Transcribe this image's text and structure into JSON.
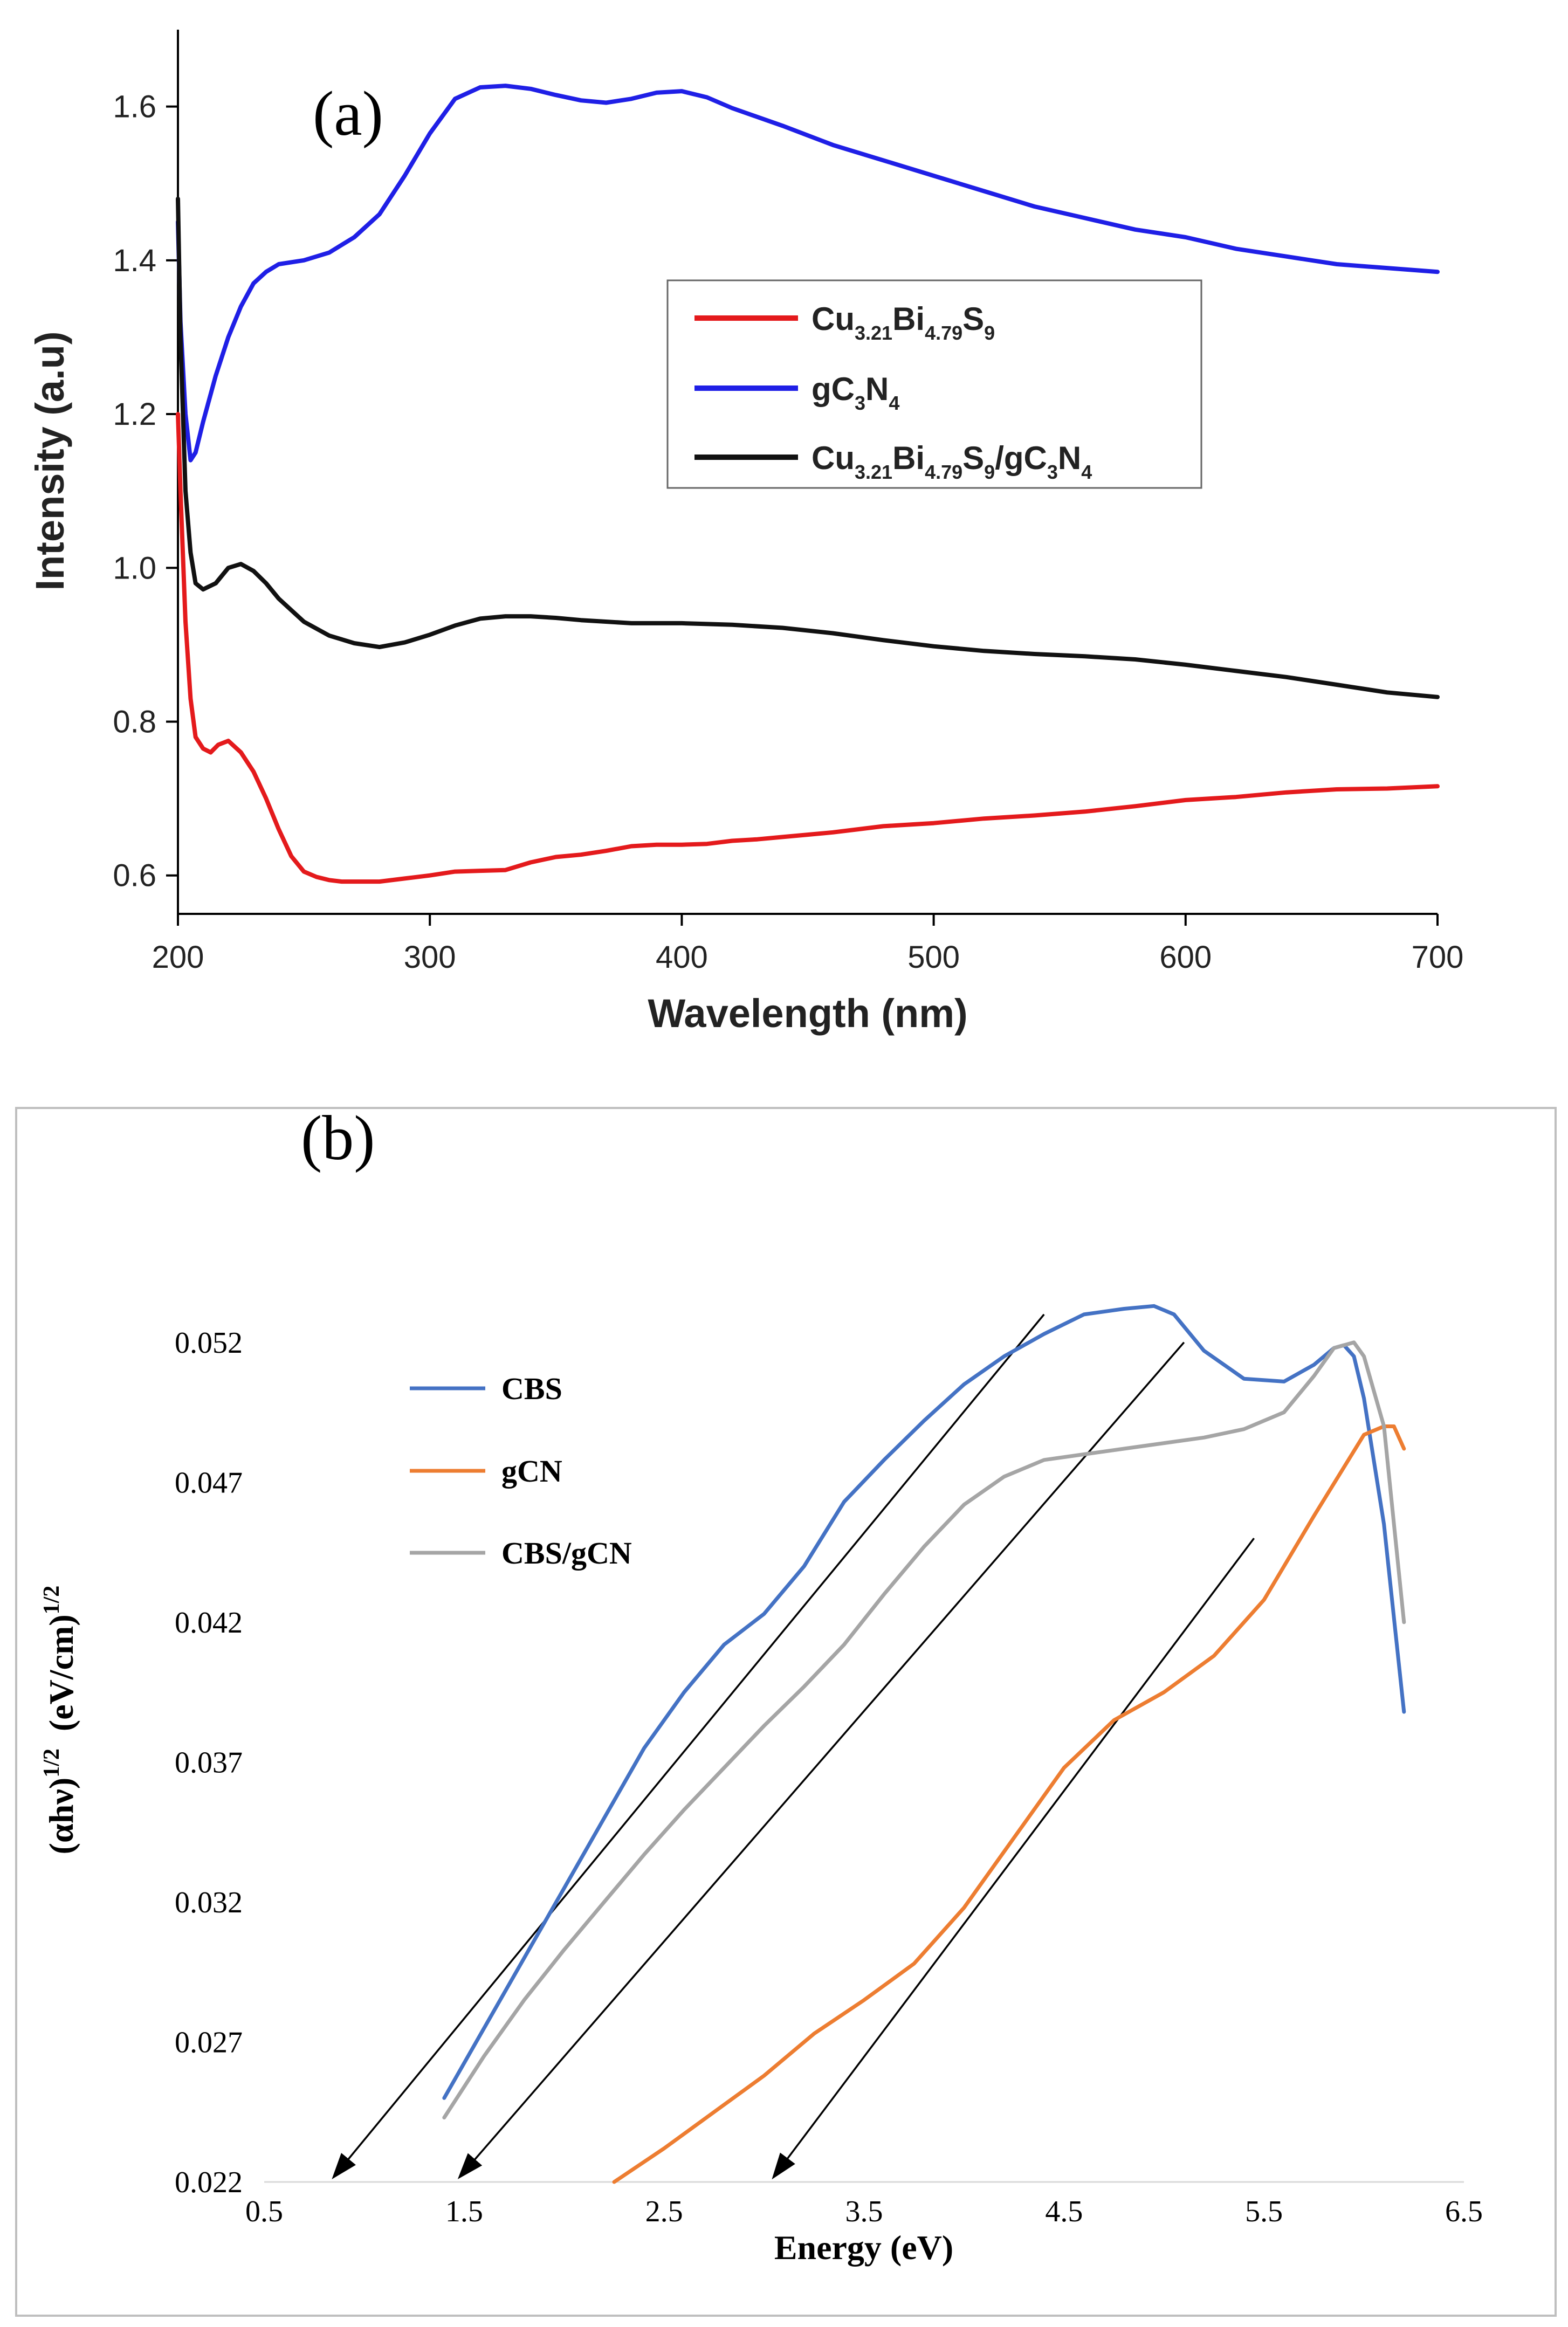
{
  "colors": {
    "red": "#e41a1c",
    "blue": "#1f1fe6",
    "black": "#111111",
    "cbs": "#4472c4",
    "gcn": "#ed7d31",
    "cbs_gcn": "#a5a5a5",
    "arrow": "#000000"
  },
  "chart_data": [
    {
      "panel": "(a)",
      "type": "line",
      "title": "",
      "xlabel": "Wavelength (nm)",
      "ylabel": "Intensity (a.u)",
      "xlim": [
        200,
        700
      ],
      "ylim": [
        0.55,
        1.7
      ],
      "xticks": [
        "200",
        "300",
        "400",
        "500",
        "600",
        "700"
      ],
      "yticks": [
        "0.6",
        "0.8",
        "1.0",
        "1.2",
        "1.4",
        "1.6"
      ],
      "legend_position": "center-right",
      "legend": [
        {
          "base": "Cu",
          "parts": [
            [
              "3.21",
              "Bi"
            ],
            [
              "4.79",
              "S"
            ],
            [
              "9",
              ""
            ]
          ]
        },
        {
          "base": "gC",
          "parts": [
            [
              "3",
              "N"
            ],
            [
              "4",
              ""
            ]
          ]
        },
        {
          "base": "Cu",
          "parts": [
            [
              "3.21",
              "Bi"
            ],
            [
              "4.79",
              "S"
            ],
            [
              "9",
              "/gC"
            ],
            [
              "3",
              "N"
            ],
            [
              "4",
              ""
            ]
          ]
        }
      ],
      "series": [
        {
          "name": "Cu3.21Bi4.79S9",
          "color": "#e41a1c",
          "x": [
            200,
            201,
            203,
            205,
            207,
            210,
            213,
            216,
            220,
            225,
            230,
            235,
            240,
            245,
            250,
            255,
            260,
            265,
            270,
            280,
            290,
            300,
            310,
            320,
            330,
            340,
            350,
            360,
            370,
            380,
            390,
            400,
            410,
            420,
            430,
            440,
            450,
            460,
            470,
            480,
            500,
            520,
            540,
            560,
            580,
            600,
            620,
            640,
            660,
            680,
            700
          ],
          "y": [
            1.2,
            1.1,
            0.93,
            0.83,
            0.78,
            0.765,
            0.76,
            0.77,
            0.775,
            0.76,
            0.735,
            0.7,
            0.66,
            0.625,
            0.605,
            0.598,
            0.594,
            0.592,
            0.592,
            0.592,
            0.596,
            0.6,
            0.605,
            0.606,
            0.607,
            0.617,
            0.624,
            0.627,
            0.632,
            0.638,
            0.64,
            0.64,
            0.641,
            0.645,
            0.647,
            0.65,
            0.653,
            0.656,
            0.66,
            0.664,
            0.668,
            0.674,
            0.678,
            0.683,
            0.69,
            0.698,
            0.702,
            0.708,
            0.712,
            0.713,
            0.716
          ]
        },
        {
          "name": "gC3N4",
          "color": "#1f1fe6",
          "x": [
            200,
            201,
            203,
            205,
            207,
            210,
            215,
            220,
            225,
            230,
            235,
            240,
            250,
            260,
            270,
            280,
            290,
            300,
            310,
            320,
            330,
            340,
            350,
            360,
            370,
            380,
            390,
            400,
            410,
            420,
            440,
            460,
            480,
            500,
            520,
            540,
            560,
            580,
            600,
            620,
            640,
            660,
            680,
            700
          ],
          "y": [
            1.45,
            1.32,
            1.2,
            1.14,
            1.15,
            1.19,
            1.25,
            1.3,
            1.34,
            1.37,
            1.385,
            1.395,
            1.4,
            1.41,
            1.43,
            1.46,
            1.51,
            1.565,
            1.61,
            1.625,
            1.627,
            1.623,
            1.615,
            1.608,
            1.605,
            1.61,
            1.618,
            1.62,
            1.612,
            1.598,
            1.575,
            1.55,
            1.53,
            1.51,
            1.49,
            1.47,
            1.455,
            1.44,
            1.43,
            1.415,
            1.405,
            1.395,
            1.39,
            1.385
          ]
        },
        {
          "name": "Cu3.21Bi4.79S9/gC3N4",
          "color": "#111111",
          "x": [
            200,
            201,
            203,
            205,
            207,
            210,
            215,
            220,
            225,
            230,
            235,
            240,
            250,
            260,
            270,
            280,
            290,
            300,
            310,
            320,
            330,
            340,
            350,
            360,
            380,
            400,
            420,
            440,
            460,
            480,
            500,
            520,
            540,
            560,
            580,
            600,
            620,
            640,
            660,
            680,
            700
          ],
          "y": [
            1.48,
            1.3,
            1.1,
            1.02,
            0.98,
            0.972,
            0.98,
            1.0,
            1.005,
            0.996,
            0.98,
            0.96,
            0.93,
            0.912,
            0.902,
            0.897,
            0.903,
            0.913,
            0.925,
            0.934,
            0.937,
            0.937,
            0.935,
            0.932,
            0.928,
            0.928,
            0.926,
            0.922,
            0.915,
            0.906,
            0.898,
            0.892,
            0.888,
            0.885,
            0.881,
            0.874,
            0.866,
            0.858,
            0.848,
            0.838,
            0.832
          ]
        }
      ]
    },
    {
      "panel": "(b)",
      "type": "line",
      "title": "",
      "xlabel": "Energy (eV)",
      "ylabel_parts": [
        "(αhν)",
        "1/2",
        "  (eV/cm)",
        "1/2"
      ],
      "xlim": [
        0.5,
        6.5
      ],
      "ylim": [
        0.022,
        0.0545
      ],
      "xticks": [
        "0.5",
        "1.5",
        "2.5",
        "3.5",
        "4.5",
        "5.5",
        "6.5"
      ],
      "yticks": [
        "0.022",
        "0.027",
        "0.032",
        "0.037",
        "0.042",
        "0.047",
        "0.052"
      ],
      "legend_position": "upper-left",
      "legend": [
        "CBS",
        "gCN",
        "CBS/gCN"
      ],
      "series": [
        {
          "name": "CBS",
          "color": "#4472c4",
          "x": [
            1.4,
            1.6,
            1.8,
            2.0,
            2.2,
            2.4,
            2.6,
            2.8,
            3.0,
            3.2,
            3.4,
            3.6,
            3.8,
            4.0,
            4.2,
            4.4,
            4.6,
            4.8,
            4.95,
            5.05,
            5.2,
            5.4,
            5.6,
            5.75,
            5.85,
            5.9,
            5.95,
            6.0,
            6.1,
            6.2
          ],
          "y": [
            0.025,
            0.0275,
            0.03,
            0.0325,
            0.035,
            0.0375,
            0.0395,
            0.0412,
            0.0423,
            0.044,
            0.0463,
            0.0478,
            0.0492,
            0.0505,
            0.0515,
            0.0523,
            0.053,
            0.0532,
            0.0533,
            0.053,
            0.0517,
            0.0507,
            0.0506,
            0.0512,
            0.0518,
            0.0519,
            0.0515,
            0.05,
            0.0455,
            0.0388
          ]
        },
        {
          "name": "gCN",
          "color": "#ed7d31",
          "x": [
            2.25,
            2.5,
            2.75,
            3.0,
            3.25,
            3.5,
            3.75,
            4.0,
            4.25,
            4.5,
            4.75,
            5.0,
            5.25,
            5.5,
            5.75,
            6.0,
            6.1,
            6.15,
            6.2
          ],
          "y": [
            0.022,
            0.0232,
            0.0245,
            0.0258,
            0.0273,
            0.0285,
            0.0298,
            0.0318,
            0.0343,
            0.0368,
            0.0385,
            0.0395,
            0.0408,
            0.0428,
            0.0458,
            0.0487,
            0.049,
            0.049,
            0.0482
          ]
        },
        {
          "name": "CBS/gCN",
          "color": "#a5a5a5",
          "x": [
            1.4,
            1.6,
            1.8,
            2.0,
            2.2,
            2.4,
            2.6,
            2.8,
            3.0,
            3.2,
            3.4,
            3.6,
            3.8,
            4.0,
            4.2,
            4.4,
            4.6,
            4.8,
            5.0,
            5.2,
            5.4,
            5.6,
            5.75,
            5.85,
            5.95,
            6.0,
            6.1,
            6.2
          ],
          "y": [
            0.0243,
            0.0265,
            0.0285,
            0.0303,
            0.032,
            0.0337,
            0.0353,
            0.0368,
            0.0383,
            0.0397,
            0.0412,
            0.043,
            0.0447,
            0.0462,
            0.0472,
            0.0478,
            0.048,
            0.0482,
            0.0484,
            0.0486,
            0.0489,
            0.0495,
            0.0508,
            0.0518,
            0.052,
            0.0515,
            0.049,
            0.042
          ]
        }
      ],
      "tangents": [
        {
          "from": [
            4.4,
            0.053
          ],
          "to": [
            0.85,
            0.0222
          ]
        },
        {
          "from": [
            5.1,
            0.052
          ],
          "to": [
            1.48,
            0.0222
          ]
        },
        {
          "from": [
            5.45,
            0.045
          ],
          "to": [
            3.05,
            0.0222
          ]
        }
      ]
    }
  ]
}
